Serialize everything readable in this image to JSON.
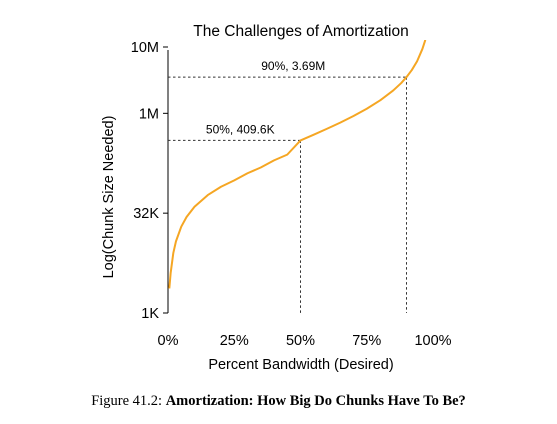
{
  "chart_data": {
    "type": "line",
    "title": "The Challenges of Amortization",
    "xlabel": "Percent Bandwidth (Desired)",
    "ylabel": "Log(Chunk Size Needed)",
    "x_ticks": [
      "0%",
      "25%",
      "50%",
      "75%",
      "100%"
    ],
    "x_tick_values": [
      0,
      25,
      50,
      75,
      100
    ],
    "y_ticks": [
      "1K",
      "32K",
      "1M",
      "10M"
    ],
    "y_tick_values": [
      1024,
      32768,
      1048576,
      10485760
    ],
    "xlim": [
      0,
      100
    ],
    "ylim_log10": [
      3.0103,
      7.0206
    ],
    "y_scale": "log",
    "series": [
      {
        "color": "#f5a623",
        "x": [
          0.5,
          1,
          2,
          3,
          5,
          7,
          10,
          15,
          20,
          25,
          30,
          35,
          40,
          45,
          50,
          55,
          60,
          65,
          70,
          75,
          80,
          85,
          88,
          90,
          92,
          94,
          96,
          97,
          98,
          99
        ],
        "y": [
          2400,
          4100,
          8200,
          12300,
          20500,
          28700,
          41000,
          61400,
          82000,
          102400,
          131000,
          160000,
          204800,
          250000,
          409600,
          500000,
          614000,
          760000,
          955000,
          1230000,
          1640000,
          2320000,
          3000000,
          3690000,
          4710000,
          6400000,
          9800000,
          13000000,
          19500000,
          39000000
        ]
      }
    ],
    "annotations": [
      {
        "label": "50%, 409.6K",
        "x": 50,
        "y": 409600
      },
      {
        "label": "90%, 3.69M",
        "x": 90,
        "y": 3690000
      }
    ],
    "grid": false
  },
  "caption": {
    "prefix": "Figure 41.2:",
    "bold": "Amortization: How Big Do Chunks Have To Be?"
  }
}
